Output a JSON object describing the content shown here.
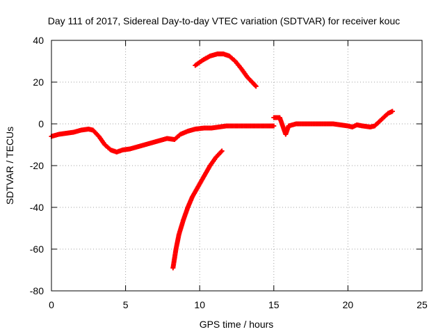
{
  "chart_data": {
    "type": "scatter",
    "title": "Day 111 of 2017, Sidereal Day-to-day VTEC variation (SDTVAR) for receiver kouc",
    "xlabel": "GPS time / hours",
    "ylabel": "SDTVAR / TECUs",
    "xlim": [
      0,
      25
    ],
    "ylim": [
      -80,
      40
    ],
    "xticks": [
      0,
      5,
      10,
      15,
      20,
      25
    ],
    "yticks": [
      -80,
      -60,
      -40,
      -20,
      0,
      20,
      40
    ],
    "grid": true,
    "marker": "+",
    "color": "#ff0000",
    "series": [
      {
        "name": "main-trace",
        "points": [
          [
            0,
            -6
          ],
          [
            0.5,
            -5
          ],
          [
            1,
            -4.5
          ],
          [
            1.5,
            -4
          ],
          [
            2,
            -3
          ],
          [
            2.5,
            -2.5
          ],
          [
            2.8,
            -3
          ],
          [
            3.2,
            -6
          ],
          [
            3.6,
            -10
          ],
          [
            4,
            -12.5
          ],
          [
            4.4,
            -13.5
          ],
          [
            4.8,
            -12.5
          ],
          [
            5.3,
            -12
          ],
          [
            5.8,
            -11
          ],
          [
            6.3,
            -10
          ],
          [
            6.8,
            -9
          ],
          [
            7.3,
            -8
          ],
          [
            7.8,
            -7
          ],
          [
            8.3,
            -7.5
          ],
          [
            8.7,
            -5
          ],
          [
            9.2,
            -3.5
          ],
          [
            9.7,
            -2.5
          ],
          [
            10.3,
            -2
          ],
          [
            10.8,
            -2
          ],
          [
            11.3,
            -1.5
          ],
          [
            11.8,
            -1
          ],
          [
            12.5,
            -1
          ],
          [
            13.2,
            -1
          ],
          [
            13.8,
            -1
          ],
          [
            14.5,
            -1
          ],
          [
            15,
            -1
          ]
        ]
      },
      {
        "name": "upper-arc",
        "points": [
          [
            9.7,
            28
          ],
          [
            10.2,
            30.5
          ],
          [
            10.7,
            32.5
          ],
          [
            11.2,
            33.5
          ],
          [
            11.6,
            33.5
          ],
          [
            12,
            32.5
          ],
          [
            12.4,
            30
          ],
          [
            12.8,
            26.5
          ],
          [
            13.2,
            22.5
          ],
          [
            13.6,
            19.5
          ],
          [
            13.8,
            18
          ]
        ]
      },
      {
        "name": "lower-curve",
        "points": [
          [
            8.2,
            -69
          ],
          [
            8.4,
            -60
          ],
          [
            8.6,
            -53
          ],
          [
            8.9,
            -46
          ],
          [
            9.2,
            -40
          ],
          [
            9.5,
            -35
          ],
          [
            9.9,
            -30
          ],
          [
            10.3,
            -25
          ],
          [
            10.7,
            -20
          ],
          [
            11.1,
            -16
          ],
          [
            11.5,
            -13
          ]
        ]
      },
      {
        "name": "right-segment",
        "points": [
          [
            15,
            3
          ],
          [
            15.4,
            3
          ],
          [
            15.8,
            -5
          ],
          [
            16,
            -1
          ],
          [
            16.5,
            0
          ],
          [
            17,
            0
          ],
          [
            17.5,
            0
          ],
          [
            18,
            0
          ],
          [
            18.5,
            0
          ],
          [
            19,
            0
          ],
          [
            19.5,
            -0.5
          ],
          [
            20,
            -1
          ],
          [
            20.3,
            -1.5
          ],
          [
            20.6,
            -0.5
          ],
          [
            21,
            -1
          ],
          [
            21.5,
            -1.5
          ],
          [
            21.8,
            -1
          ],
          [
            22.1,
            1
          ],
          [
            22.4,
            3
          ],
          [
            22.7,
            5
          ],
          [
            23,
            6
          ]
        ]
      }
    ]
  }
}
